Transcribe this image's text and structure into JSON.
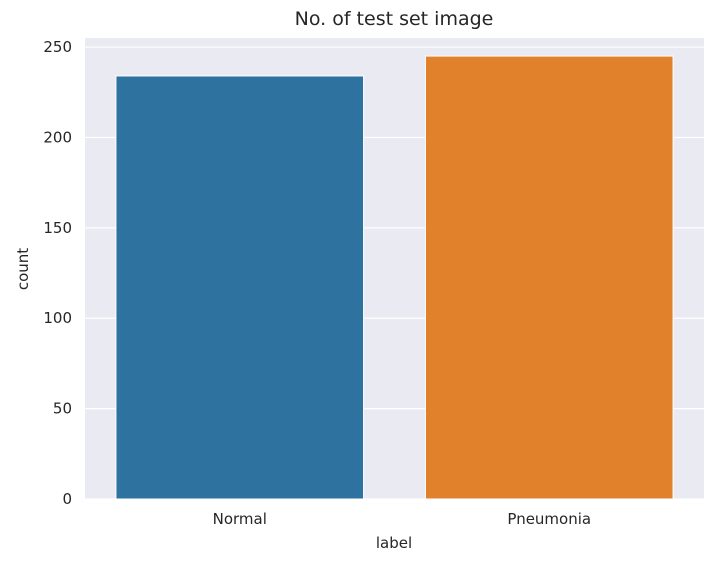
{
  "chart_data": {
    "type": "bar",
    "title": "No. of test set image",
    "xlabel": "label",
    "ylabel": "count",
    "categories": [
      "Normal",
      "Pneumonia"
    ],
    "values": [
      234,
      245
    ],
    "colors": [
      "#2e72a0",
      "#e1812c"
    ],
    "ylim": [
      0,
      255
    ],
    "yticks": [
      0,
      50,
      100,
      150,
      200,
      250
    ],
    "grid": true,
    "background": "#eaeaf2"
  }
}
